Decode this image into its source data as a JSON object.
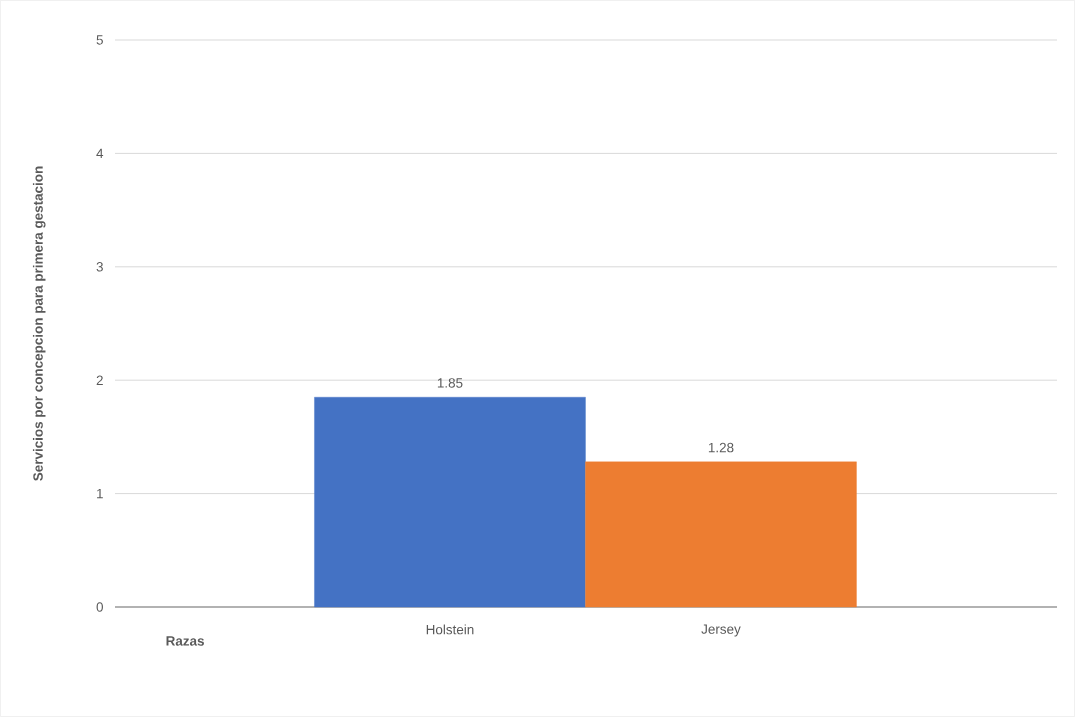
{
  "chart_data": {
    "type": "bar",
    "ylabel": "Servicios por concepcion para primera gestacion",
    "xlabel": "Razas",
    "categories": [
      "Holstein",
      "Jersey"
    ],
    "values": [
      1.85,
      1.28
    ],
    "colors": [
      "#4472c4",
      "#ed7d31"
    ],
    "ylim": [
      0,
      5
    ],
    "yticks": [
      0,
      1,
      2,
      3,
      4,
      5
    ],
    "grid": "y",
    "data_labels": true
  }
}
